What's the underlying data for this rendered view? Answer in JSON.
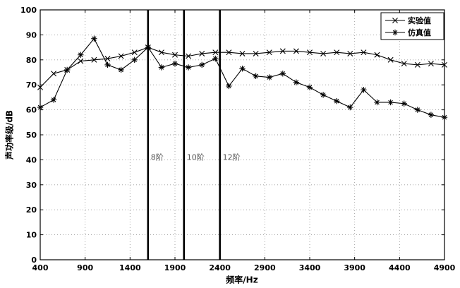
{
  "chart_data": {
    "type": "line",
    "title": "",
    "xlabel": "频率/Hz",
    "ylabel": "声功率级/dB",
    "xlim": [
      400,
      4900
    ],
    "ylim": [
      0,
      100
    ],
    "xticks": [
      400,
      900,
      1400,
      1900,
      2400,
      2900,
      3400,
      3900,
      4400,
      4900
    ],
    "yticks": [
      0,
      10,
      20,
      30,
      40,
      50,
      60,
      70,
      80,
      90,
      100
    ],
    "grid": "dotted",
    "grid_color": "#9a9a9a",
    "legend_position": "top-right",
    "annotation_color": "#595959",
    "x": [
      400,
      550,
      700,
      850,
      1000,
      1150,
      1300,
      1450,
      1600,
      1750,
      1900,
      2050,
      2200,
      2350,
      2500,
      2650,
      2800,
      2950,
      3100,
      3250,
      3400,
      3550,
      3700,
      3850,
      4000,
      4150,
      4300,
      4450,
      4600,
      4750,
      4900
    ],
    "series": [
      {
        "name": "实验值",
        "marker": "x",
        "color": "#000000",
        "values": [
          69,
          74.5,
          76,
          79.5,
          80,
          80.5,
          81.5,
          83,
          85,
          83,
          82,
          81.5,
          82.5,
          83,
          83,
          82.5,
          82.5,
          83,
          83.5,
          83.5,
          83,
          82.5,
          83,
          82.5,
          83,
          82,
          80,
          78.5,
          78,
          78.5,
          78
        ]
      },
      {
        "name": "仿真值",
        "marker": "asterisk",
        "color": "#000000",
        "values": [
          61,
          64,
          76,
          82,
          88.5,
          78,
          76,
          80,
          85,
          77,
          78.5,
          77,
          78,
          80.5,
          69.5,
          76.5,
          73.5,
          73,
          74.5,
          71,
          69,
          66,
          63.5,
          61,
          68,
          63,
          63,
          62.5,
          60,
          58,
          57
        ]
      }
    ],
    "vertical_lines": [
      {
        "x": 1600,
        "label": "8阶"
      },
      {
        "x": 2000,
        "label": "10阶"
      },
      {
        "x": 2400,
        "label": "12阶"
      }
    ]
  }
}
